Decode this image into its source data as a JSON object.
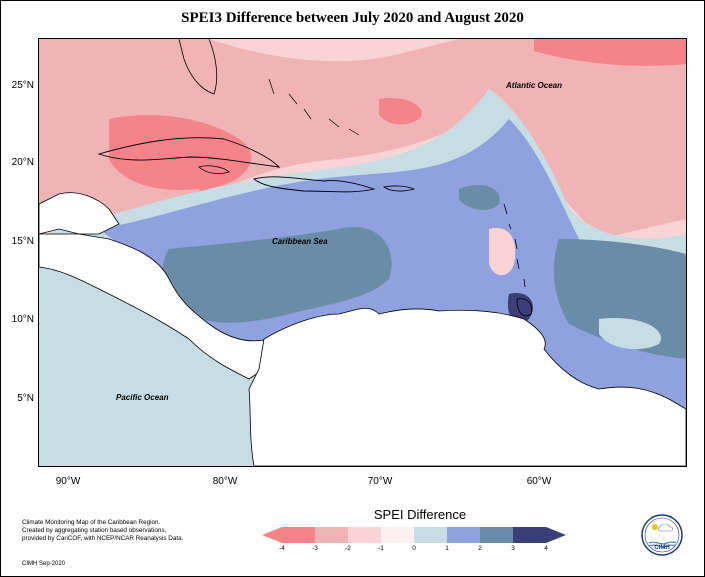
{
  "title": "SPEI3 Difference between July 2020 and August 2020",
  "map": {
    "lat_labels": [
      "25°N",
      "20°N",
      "15°N",
      "10°N",
      "5°N"
    ],
    "lon_labels": [
      "90°W",
      "80°W",
      "70°W",
      "60°W"
    ],
    "places": {
      "atlantic": "Atlantic Ocean",
      "caribbean": "Caribbean Sea",
      "pacific": "Pacific Ocean"
    }
  },
  "legend": {
    "title": "SPEI Difference",
    "ticks": [
      "-4",
      "-3",
      "-2",
      "-1",
      "0",
      "1",
      "2",
      "3",
      "4"
    ],
    "colors": {
      "c_m4_m3": "#f4838a",
      "c_m3_m2": "#f0b4b7",
      "c_m2_m1": "#fad3d6",
      "c_m1_0": "#fdf0f1",
      "c_0_1": "#c6dde4",
      "c_1_2": "#8fa1de",
      "c_2_3": "#6a8ca6",
      "c_3_4": "#3a3f78"
    }
  },
  "credits": {
    "line1": "Climate Monitoring Map of the Caribbean Region.",
    "line2": "Created by aggregating station based observations,",
    "line3": "provided by CariCOF, with NCEP/NCAR Reanalysis Data.",
    "date": "CIMH Sep-2020"
  },
  "logo": {
    "text": "CIMH"
  }
}
